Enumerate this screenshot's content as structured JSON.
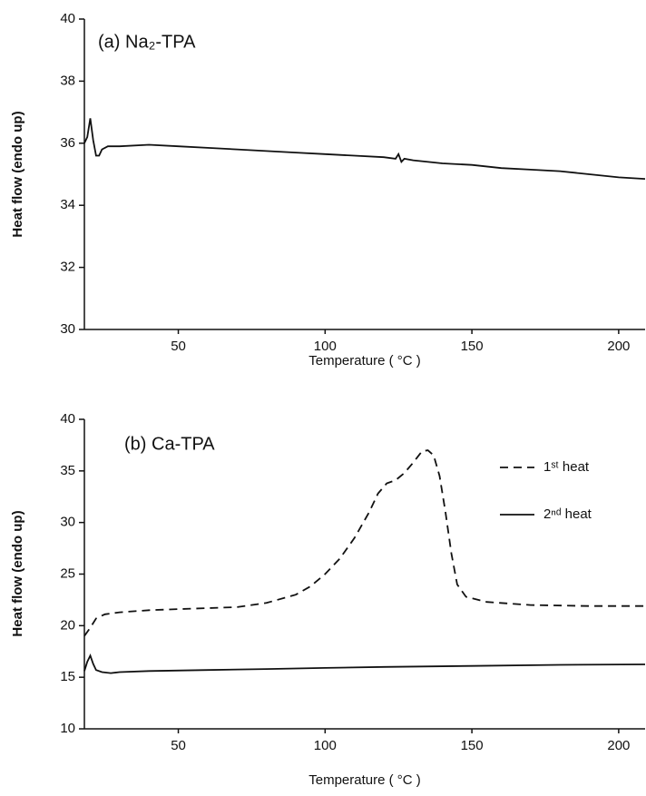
{
  "chart_data": [
    {
      "type": "line",
      "title": "(a) Na₂-TPA",
      "x_label": "Temperature ( °C )",
      "y_label": "Heat flow (endo up)",
      "xlim": [
        18,
        209
      ],
      "xticks": [
        50,
        100,
        150,
        200
      ],
      "ylim": [
        30,
        40
      ],
      "yticks": [
        30,
        32,
        34,
        36,
        38,
        40
      ],
      "series": [
        {
          "name": null,
          "color": "#111111",
          "style": "solid",
          "x": [
            18,
            19,
            20,
            21,
            22,
            23,
            24,
            26,
            30,
            40,
            50,
            60,
            70,
            80,
            90,
            100,
            110,
            120,
            124,
            125,
            126,
            127,
            130,
            140,
            150,
            160,
            170,
            180,
            190,
            200,
            209
          ],
          "values": [
            36.0,
            36.2,
            36.8,
            36.1,
            35.6,
            35.6,
            35.8,
            35.9,
            35.9,
            35.95,
            35.9,
            35.85,
            35.8,
            35.75,
            35.7,
            35.65,
            35.6,
            35.55,
            35.5,
            35.65,
            35.4,
            35.5,
            35.45,
            35.35,
            35.3,
            35.2,
            35.15,
            35.1,
            35.0,
            34.9,
            34.85
          ]
        }
      ]
    },
    {
      "type": "line",
      "title": "(b) Ca-TPA",
      "x_label": "Temperature ( °C )",
      "y_label": "Heat flow (endo up)",
      "xlim": [
        18,
        209
      ],
      "xticks": [
        50,
        100,
        150,
        200
      ],
      "ylim": [
        10,
        40
      ],
      "yticks": [
        10,
        15,
        20,
        25,
        30,
        35,
        40
      ],
      "legend": "upper right",
      "series": [
        {
          "name": "1ˢᵗ heat",
          "color": "#111111",
          "style": "dashed",
          "x": [
            18,
            20,
            22,
            25,
            30,
            40,
            50,
            60,
            70,
            80,
            90,
            95,
            100,
            105,
            110,
            115,
            118,
            121,
            124,
            127,
            130,
            133,
            135,
            137,
            139,
            141,
            143,
            145,
            148,
            155,
            170,
            190,
            209
          ],
          "values": [
            19.0,
            19.8,
            20.7,
            21.1,
            21.3,
            21.5,
            21.6,
            21.7,
            21.8,
            22.2,
            23.0,
            23.8,
            25.0,
            26.5,
            28.5,
            31.0,
            32.8,
            33.8,
            34.1,
            34.8,
            35.8,
            36.9,
            37.0,
            36.5,
            34.5,
            31.0,
            27.0,
            24.0,
            22.8,
            22.3,
            22.0,
            21.9,
            21.9
          ]
        },
        {
          "name": "2ⁿᵈ heat",
          "color": "#111111",
          "style": "solid",
          "x": [
            18,
            19,
            20,
            21,
            22,
            24,
            27,
            30,
            40,
            60,
            80,
            100,
            120,
            150,
            180,
            209
          ],
          "values": [
            15.6,
            16.5,
            17.1,
            16.3,
            15.7,
            15.5,
            15.4,
            15.5,
            15.6,
            15.7,
            15.8,
            15.9,
            16.0,
            16.1,
            16.2,
            16.25
          ]
        }
      ]
    }
  ]
}
